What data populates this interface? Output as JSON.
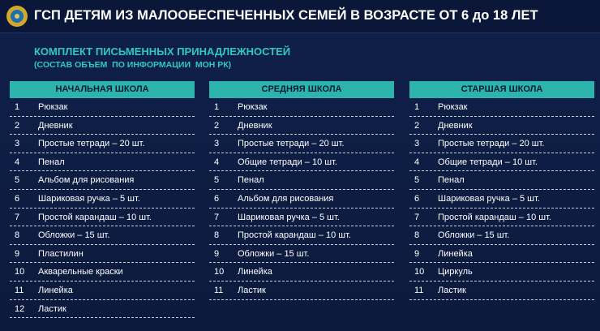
{
  "header": {
    "title": "ГСП ДЕТЯМ ИЗ МАЛООБЕСПЕЧЕННЫХ СЕМЕЙ В ВОЗРАСТЕ ОТ 6 до 18 ЛЕТ"
  },
  "subtitle": {
    "line1": "КОМПЛЕКТ ПИСЬМЕННЫХ ПРИНАДЛЕЖНОСТЕЙ",
    "line2": "(СОСТАВ ОБЪЕМ  ПО ИНФОРМАЦИИ  МОН РК)"
  },
  "columns": [
    {
      "title": "НАЧАЛЬНАЯ ШКОЛА",
      "rows": [
        [
          1,
          "Рюкзак"
        ],
        [
          2,
          "Дневник"
        ],
        [
          3,
          "Простые тетради – 20 шт."
        ],
        [
          4,
          "Пенал"
        ],
        [
          5,
          "Альбом для рисования"
        ],
        [
          6,
          "Шариковая ручка – 5 шт."
        ],
        [
          7,
          "Простой карандаш – 10 шт."
        ],
        [
          8,
          "Обложки – 15 шт."
        ],
        [
          9,
          "Пластилин"
        ],
        [
          10,
          "Акварельные краски"
        ],
        [
          11,
          "Линейка"
        ],
        [
          12,
          "Ластик"
        ]
      ]
    },
    {
      "title": "СРЕДНЯЯ ШКОЛА",
      "rows": [
        [
          1,
          "Рюкзак"
        ],
        [
          2,
          "Дневник"
        ],
        [
          3,
          "Простые тетради – 20 шт."
        ],
        [
          4,
          "Общие тетради – 10 шт."
        ],
        [
          5,
          "Пенал"
        ],
        [
          6,
          "Альбом для рисования"
        ],
        [
          7,
          "Шариковая ручка – 5 шт."
        ],
        [
          8,
          "Простой карандаш – 10 шт."
        ],
        [
          9,
          "Обложки – 15 шт."
        ],
        [
          10,
          "Линейка"
        ],
        [
          11,
          "Ластик"
        ]
      ]
    },
    {
      "title": "СТАРШАЯ ШКОЛА",
      "rows": [
        [
          1,
          "Рюкзак"
        ],
        [
          2,
          "Дневник"
        ],
        [
          3,
          "Простые тетради – 20 шт."
        ],
        [
          4,
          "Общие тетради – 10 шт."
        ],
        [
          5,
          "Пенал"
        ],
        [
          6,
          "Шариковая ручка – 5 шт."
        ],
        [
          7,
          "Простой карандаш – 10 шт."
        ],
        [
          8,
          "Обложки – 15 шт."
        ],
        [
          9,
          "Линейка"
        ],
        [
          10,
          "Циркуль"
        ],
        [
          11,
          "Ластик"
        ]
      ]
    }
  ]
}
